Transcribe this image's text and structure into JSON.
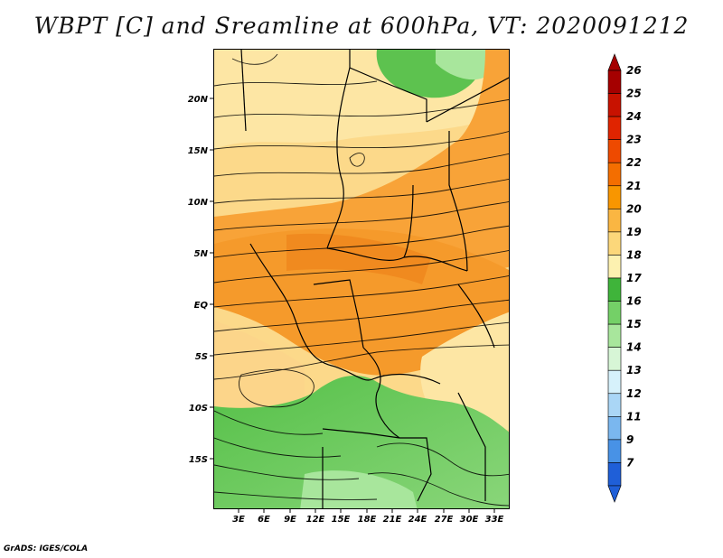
{
  "title": "WBPT [C] and Sreamline at 600hPa, VT: 2020091212",
  "credit": "GrADS: IGES/COLA",
  "map": {
    "lon_labels": [
      "3E",
      "6E",
      "9E",
      "12E",
      "15E",
      "18E",
      "21E",
      "24E",
      "27E",
      "30E",
      "33E"
    ],
    "lat_labels": [
      "20N",
      "15N",
      "10N",
      "5N",
      "EQ",
      "5S",
      "10S",
      "15S"
    ]
  },
  "colorbar": {
    "levels": [
      "26",
      "25",
      "24",
      "23",
      "22",
      "21",
      "20",
      "19",
      "18",
      "17",
      "16",
      "15",
      "14",
      "13",
      "12",
      "11",
      "9",
      "7"
    ],
    "colors": [
      "#a50000",
      "#c81200",
      "#e02400",
      "#ee4a00",
      "#f46e00",
      "#f89600",
      "#fab642",
      "#fcd77a",
      "#fdf1b0",
      "#3fb43a",
      "#74d067",
      "#a8e69c",
      "#d7f6d6",
      "#d6f1fb",
      "#aad6f6",
      "#7ab7ef",
      "#4892e6",
      "#1f5fd8"
    ]
  }
}
